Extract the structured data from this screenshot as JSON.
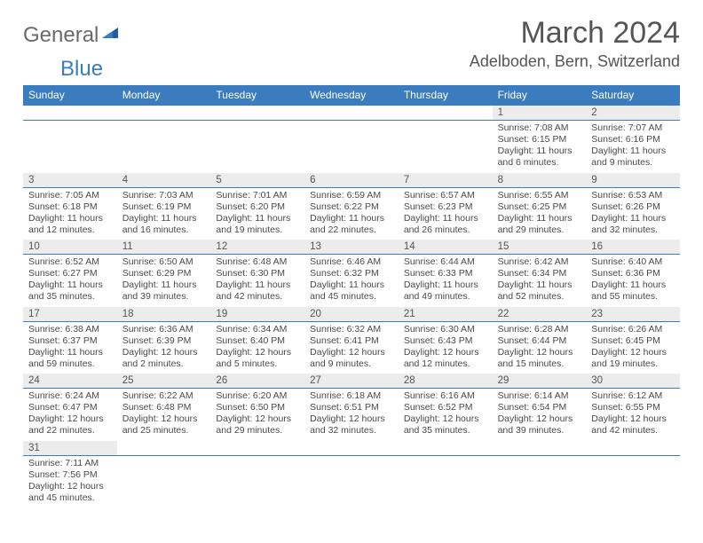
{
  "logo": {
    "general": "General",
    "blue": "Blue"
  },
  "title": "March 2024",
  "location": "Adelboden, Bern, Switzerland",
  "colors": {
    "header_bg": "#3b7cbf",
    "daynum_bg": "#ececec",
    "rule": "#3b7cbf",
    "text": "#4a4a4a"
  },
  "dow": [
    "Sunday",
    "Monday",
    "Tuesday",
    "Wednesday",
    "Thursday",
    "Friday",
    "Saturday"
  ],
  "weeks": [
    [
      null,
      null,
      null,
      null,
      null,
      {
        "n": "1",
        "sr": "Sunrise: 7:08 AM",
        "ss": "Sunset: 6:15 PM",
        "d1": "Daylight: 11 hours",
        "d2": "and 6 minutes."
      },
      {
        "n": "2",
        "sr": "Sunrise: 7:07 AM",
        "ss": "Sunset: 6:16 PM",
        "d1": "Daylight: 11 hours",
        "d2": "and 9 minutes."
      }
    ],
    [
      {
        "n": "3",
        "sr": "Sunrise: 7:05 AM",
        "ss": "Sunset: 6:18 PM",
        "d1": "Daylight: 11 hours",
        "d2": "and 12 minutes."
      },
      {
        "n": "4",
        "sr": "Sunrise: 7:03 AM",
        "ss": "Sunset: 6:19 PM",
        "d1": "Daylight: 11 hours",
        "d2": "and 16 minutes."
      },
      {
        "n": "5",
        "sr": "Sunrise: 7:01 AM",
        "ss": "Sunset: 6:20 PM",
        "d1": "Daylight: 11 hours",
        "d2": "and 19 minutes."
      },
      {
        "n": "6",
        "sr": "Sunrise: 6:59 AM",
        "ss": "Sunset: 6:22 PM",
        "d1": "Daylight: 11 hours",
        "d2": "and 22 minutes."
      },
      {
        "n": "7",
        "sr": "Sunrise: 6:57 AM",
        "ss": "Sunset: 6:23 PM",
        "d1": "Daylight: 11 hours",
        "d2": "and 26 minutes."
      },
      {
        "n": "8",
        "sr": "Sunrise: 6:55 AM",
        "ss": "Sunset: 6:25 PM",
        "d1": "Daylight: 11 hours",
        "d2": "and 29 minutes."
      },
      {
        "n": "9",
        "sr": "Sunrise: 6:53 AM",
        "ss": "Sunset: 6:26 PM",
        "d1": "Daylight: 11 hours",
        "d2": "and 32 minutes."
      }
    ],
    [
      {
        "n": "10",
        "sr": "Sunrise: 6:52 AM",
        "ss": "Sunset: 6:27 PM",
        "d1": "Daylight: 11 hours",
        "d2": "and 35 minutes."
      },
      {
        "n": "11",
        "sr": "Sunrise: 6:50 AM",
        "ss": "Sunset: 6:29 PM",
        "d1": "Daylight: 11 hours",
        "d2": "and 39 minutes."
      },
      {
        "n": "12",
        "sr": "Sunrise: 6:48 AM",
        "ss": "Sunset: 6:30 PM",
        "d1": "Daylight: 11 hours",
        "d2": "and 42 minutes."
      },
      {
        "n": "13",
        "sr": "Sunrise: 6:46 AM",
        "ss": "Sunset: 6:32 PM",
        "d1": "Daylight: 11 hours",
        "d2": "and 45 minutes."
      },
      {
        "n": "14",
        "sr": "Sunrise: 6:44 AM",
        "ss": "Sunset: 6:33 PM",
        "d1": "Daylight: 11 hours",
        "d2": "and 49 minutes."
      },
      {
        "n": "15",
        "sr": "Sunrise: 6:42 AM",
        "ss": "Sunset: 6:34 PM",
        "d1": "Daylight: 11 hours",
        "d2": "and 52 minutes."
      },
      {
        "n": "16",
        "sr": "Sunrise: 6:40 AM",
        "ss": "Sunset: 6:36 PM",
        "d1": "Daylight: 11 hours",
        "d2": "and 55 minutes."
      }
    ],
    [
      {
        "n": "17",
        "sr": "Sunrise: 6:38 AM",
        "ss": "Sunset: 6:37 PM",
        "d1": "Daylight: 11 hours",
        "d2": "and 59 minutes."
      },
      {
        "n": "18",
        "sr": "Sunrise: 6:36 AM",
        "ss": "Sunset: 6:39 PM",
        "d1": "Daylight: 12 hours",
        "d2": "and 2 minutes."
      },
      {
        "n": "19",
        "sr": "Sunrise: 6:34 AM",
        "ss": "Sunset: 6:40 PM",
        "d1": "Daylight: 12 hours",
        "d2": "and 5 minutes."
      },
      {
        "n": "20",
        "sr": "Sunrise: 6:32 AM",
        "ss": "Sunset: 6:41 PM",
        "d1": "Daylight: 12 hours",
        "d2": "and 9 minutes."
      },
      {
        "n": "21",
        "sr": "Sunrise: 6:30 AM",
        "ss": "Sunset: 6:43 PM",
        "d1": "Daylight: 12 hours",
        "d2": "and 12 minutes."
      },
      {
        "n": "22",
        "sr": "Sunrise: 6:28 AM",
        "ss": "Sunset: 6:44 PM",
        "d1": "Daylight: 12 hours",
        "d2": "and 15 minutes."
      },
      {
        "n": "23",
        "sr": "Sunrise: 6:26 AM",
        "ss": "Sunset: 6:45 PM",
        "d1": "Daylight: 12 hours",
        "d2": "and 19 minutes."
      }
    ],
    [
      {
        "n": "24",
        "sr": "Sunrise: 6:24 AM",
        "ss": "Sunset: 6:47 PM",
        "d1": "Daylight: 12 hours",
        "d2": "and 22 minutes."
      },
      {
        "n": "25",
        "sr": "Sunrise: 6:22 AM",
        "ss": "Sunset: 6:48 PM",
        "d1": "Daylight: 12 hours",
        "d2": "and 25 minutes."
      },
      {
        "n": "26",
        "sr": "Sunrise: 6:20 AM",
        "ss": "Sunset: 6:50 PM",
        "d1": "Daylight: 12 hours",
        "d2": "and 29 minutes."
      },
      {
        "n": "27",
        "sr": "Sunrise: 6:18 AM",
        "ss": "Sunset: 6:51 PM",
        "d1": "Daylight: 12 hours",
        "d2": "and 32 minutes."
      },
      {
        "n": "28",
        "sr": "Sunrise: 6:16 AM",
        "ss": "Sunset: 6:52 PM",
        "d1": "Daylight: 12 hours",
        "d2": "and 35 minutes."
      },
      {
        "n": "29",
        "sr": "Sunrise: 6:14 AM",
        "ss": "Sunset: 6:54 PM",
        "d1": "Daylight: 12 hours",
        "d2": "and 39 minutes."
      },
      {
        "n": "30",
        "sr": "Sunrise: 6:12 AM",
        "ss": "Sunset: 6:55 PM",
        "d1": "Daylight: 12 hours",
        "d2": "and 42 minutes."
      }
    ],
    [
      {
        "n": "31",
        "sr": "Sunrise: 7:11 AM",
        "ss": "Sunset: 7:56 PM",
        "d1": "Daylight: 12 hours",
        "d2": "and 45 minutes."
      },
      null,
      null,
      null,
      null,
      null,
      null
    ]
  ]
}
